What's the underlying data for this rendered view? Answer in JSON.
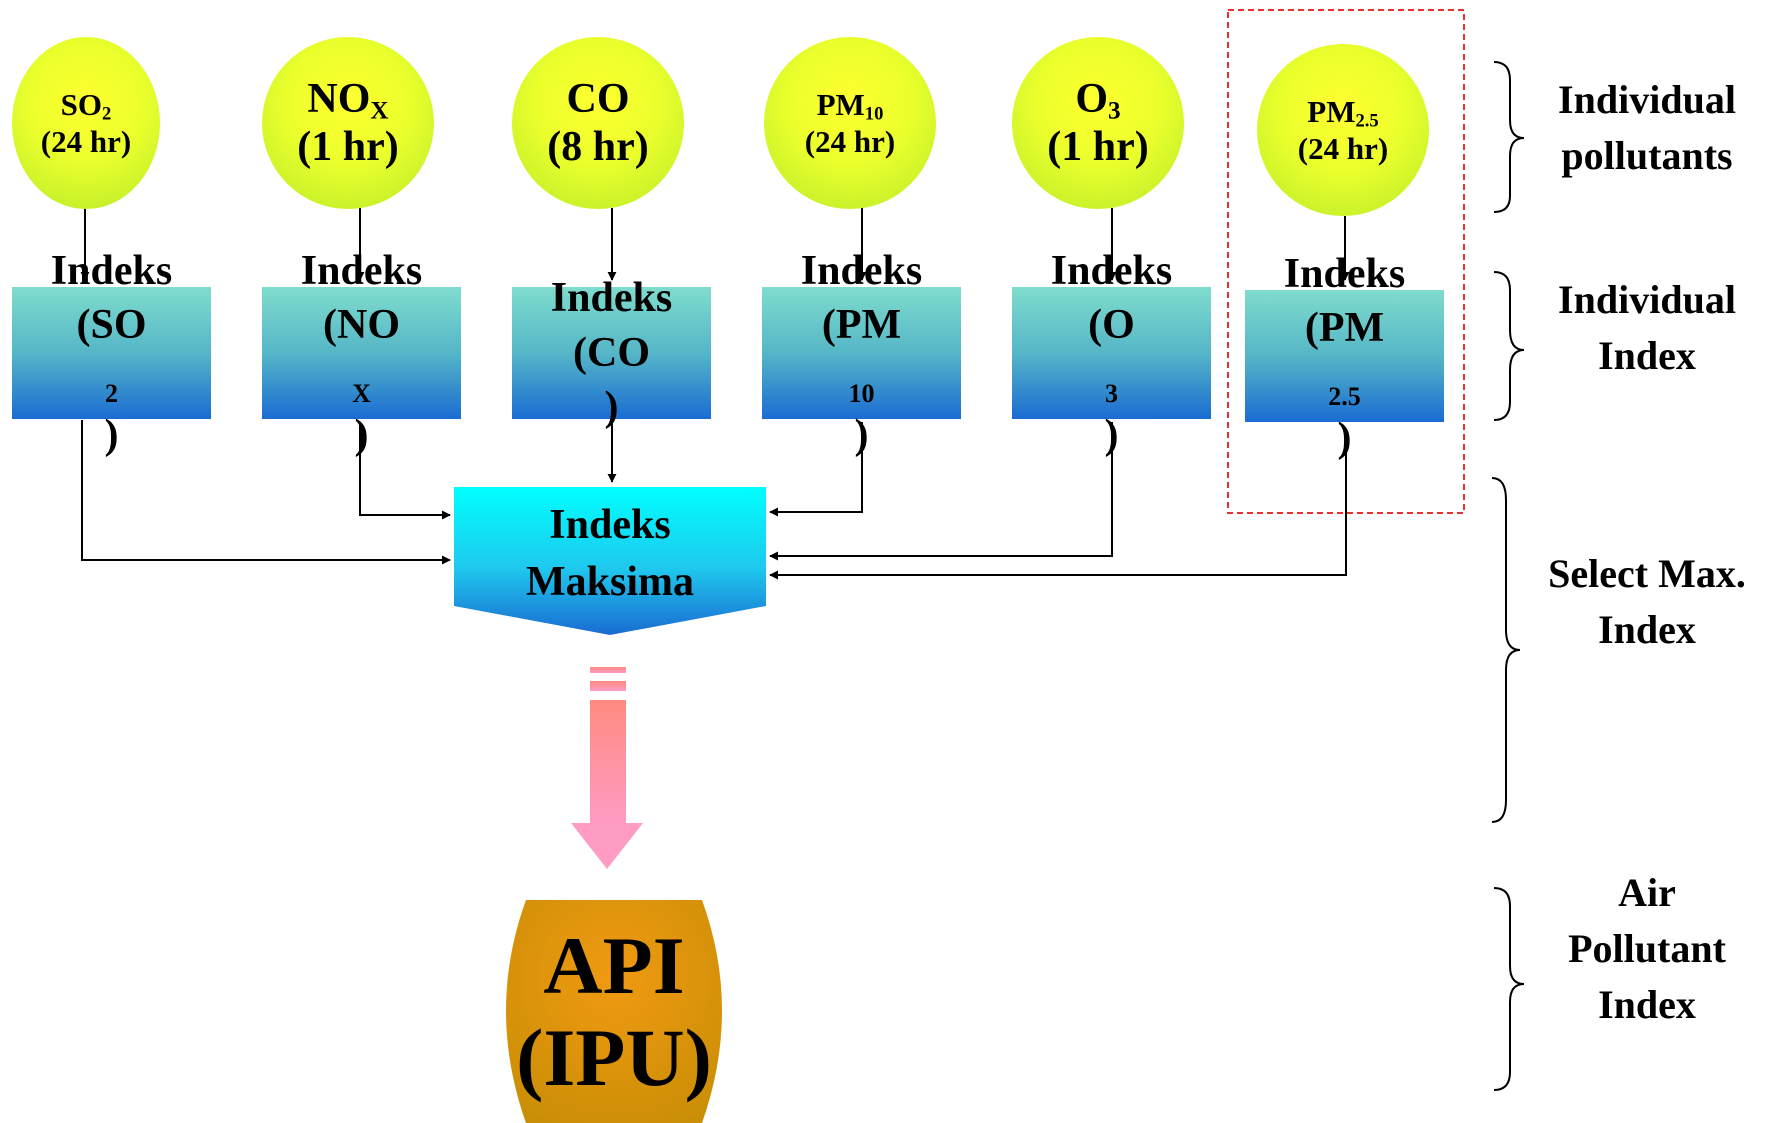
{
  "pollutants": [
    {
      "name": "SO",
      "sub": "2",
      "period": "(24 hr)",
      "index_label": "Indeks",
      "index_name": "(SO",
      "index_sub": "2",
      "index_close": ")"
    },
    {
      "name": "NO",
      "sub": "X",
      "period": "(1 hr)",
      "index_label": "Indeks",
      "index_name": "(NO",
      "index_sub": "X",
      "index_close": ")"
    },
    {
      "name": "CO",
      "sub": "",
      "period": "(8 hr)",
      "index_label": "Indeks",
      "index_name": "(CO",
      "index_sub": "",
      "index_close": ")"
    },
    {
      "name": "PM",
      "sub": "10",
      "period": "(24 hr)",
      "index_label": "Indeks",
      "index_name": "(PM",
      "index_sub": "10",
      "index_close": ")"
    },
    {
      "name": "O",
      "sub": "3",
      "period": "(1 hr)",
      "index_label": "Indeks",
      "index_name": "(O",
      "index_sub": "3",
      "index_close": ")"
    },
    {
      "name": "PM",
      "sub": "2.5",
      "period": "(24 hr)",
      "index_label": "Indeks",
      "index_name": "(PM",
      "index_sub": "2.5",
      "index_close": ")"
    }
  ],
  "max_index": {
    "line1": "Indeks",
    "line2": "Maksima"
  },
  "result": {
    "line1": "API",
    "line2": "(IPU)"
  },
  "stage_labels": {
    "individual_pollutants": [
      "Individual",
      "pollutants"
    ],
    "individual_index": [
      "Individual",
      "Index"
    ],
    "select_max": [
      "Select Max.",
      "Index"
    ],
    "air_pollutant_index": [
      "Air",
      "Pollutant",
      "Index"
    ]
  },
  "colors": {
    "circle_fill": "#eaff2c",
    "index_box_top": "#7fdccd",
    "index_box_bottom": "#1a6cd2",
    "max_box_top": "#00ffff",
    "max_box_bottom": "#1a6cd2",
    "result_fill": "#e8900f",
    "down_arrow": "#ff8fa0",
    "highlight_border": "#e83030"
  }
}
